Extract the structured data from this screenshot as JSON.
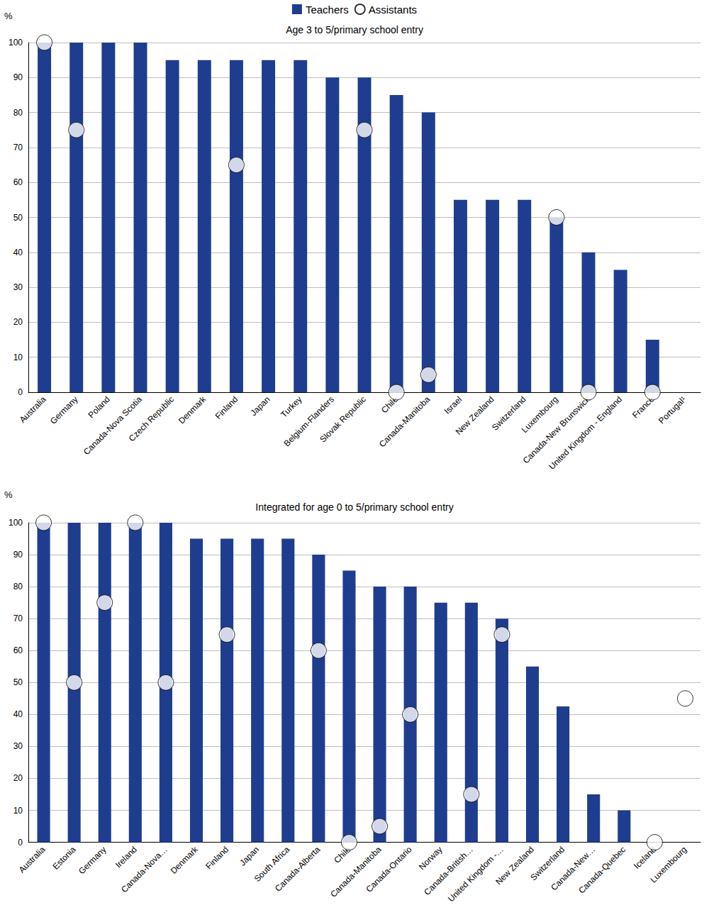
{
  "chart_data": [
    {
      "type": "bar",
      "title": "Age 3 to 5/primary school entry",
      "ylabel": "%",
      "categories": [
        "Australia",
        "Germany",
        "Poland",
        "Canada-Nova Scotia",
        "Czech Republic",
        "Denmark",
        "Finland",
        "Japan",
        "Turkey",
        "Belgium-Flanders",
        "Slovak Republic",
        "Chile",
        "Canada-Manitoba",
        "Israel",
        "New Zealand",
        "Switzerland",
        "Luxembourg",
        "Canada-New Brunswick",
        "United Kingdom - England",
        "France",
        "Portugal¹"
      ],
      "series": [
        {
          "name": "Teachers",
          "type": "bar",
          "color": "#1f3d8f",
          "values": [
            100,
            100,
            100,
            100,
            95,
            95,
            95,
            95,
            95,
            90,
            90,
            85,
            80,
            55,
            55,
            55,
            50,
            40,
            35,
            15,
            null
          ]
        },
        {
          "name": "Assistants",
          "type": "scatter",
          "marker": "circle",
          "color": "#ffffff",
          "values": [
            100,
            75,
            null,
            null,
            null,
            null,
            65,
            null,
            null,
            null,
            75,
            0,
            5,
            null,
            null,
            null,
            50,
            0,
            null,
            0,
            null
          ]
        }
      ],
      "ylim": [
        0,
        100
      ],
      "yticks": [
        0,
        10,
        20,
        30,
        40,
        50,
        60,
        70,
        80,
        90,
        100
      ],
      "grid": true,
      "legend": "top"
    },
    {
      "type": "bar",
      "title": "Integrated for age 0 to 5/primary school entry",
      "ylabel": "%",
      "categories": [
        "Australia",
        "Estonia",
        "Germany",
        "Ireland",
        "Canada-Nova…",
        "Denmark",
        "Finland",
        "Japan",
        "South Africa",
        "Canada-Alberta",
        "Chile",
        "Canada-Manitoba",
        "Canada-Ontario",
        "Norway",
        "Canada-British…",
        "United Kingdom -…",
        "New Zealand",
        "Switzerland",
        "Canada-New…",
        "Canada-Quebec",
        "Iceland",
        "Luxembourg"
      ],
      "series": [
        {
          "name": "Teachers",
          "type": "bar",
          "color": "#1f3d8f",
          "values": [
            100,
            100,
            100,
            100,
            100,
            95,
            95,
            95,
            95,
            90,
            85,
            80,
            80,
            75,
            75,
            70,
            55,
            42.5,
            15,
            10,
            null,
            null
          ]
        },
        {
          "name": "Assistants",
          "type": "scatter",
          "marker": "circle",
          "color": "#ffffff",
          "values": [
            100,
            50,
            75,
            100,
            50,
            null,
            65,
            null,
            null,
            60,
            0,
            5,
            40,
            null,
            15,
            65,
            null,
            null,
            null,
            null,
            0,
            45
          ]
        }
      ],
      "ylim": [
        0,
        100
      ],
      "yticks": [
        0,
        10,
        20,
        30,
        40,
        50,
        60,
        70,
        80,
        90,
        100
      ],
      "grid": true
    }
  ]
}
